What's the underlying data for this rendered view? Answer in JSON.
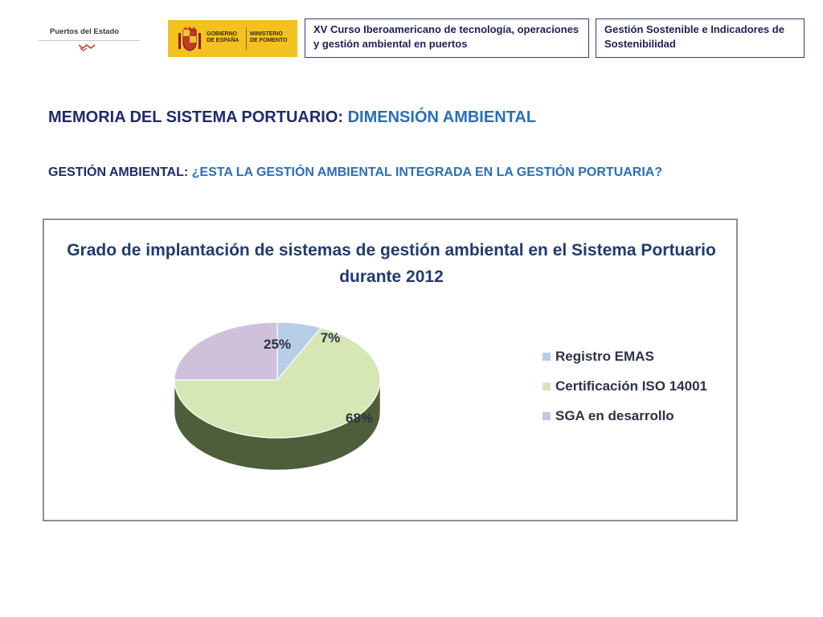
{
  "header": {
    "logo_puertos": "Puertos del Estado",
    "logo_gobierno": [
      "GOBIERNO",
      "DE ESPAÑA"
    ],
    "logo_ministerio": [
      "MINISTERIO",
      "DE FOMENTO"
    ],
    "course_box": "XV Curso Iberoamericano de tecnología, operaciones y gestión ambiental en puertos",
    "topic_box": "Gestión Sostenible e Indicadores de Sostenibilidad"
  },
  "main": {
    "title_prefix": "MEMORIA DEL SISTEMA PORTUARIO: ",
    "title_highlight": "DIMENSIÓN AMBIENTAL",
    "subtitle_prefix": "GESTIÓN AMBIENTAL: ",
    "subtitle_highlight": "¿ESTA LA GESTIÓN AMBIENTAL INTEGRADA EN LA GESTIÓN PORTUARIA?"
  },
  "colors": {
    "navy": "#1f2a6b",
    "accent_blue": "#2a6fb9",
    "slice_emas": "#b8cde6",
    "slice_iso": "#d6e6b4",
    "slice_sga": "#cfc0dc"
  },
  "chart_data": {
    "type": "pie",
    "title_lines": [
      "Grado de implantación de sistemas de gestión ambiental en el Sistema Portuario",
      "durante 2012"
    ],
    "categories": [
      "Registro EMAS",
      "Certificación ISO 14001",
      "SGA en desarrollo"
    ],
    "values": [
      7,
      68,
      25
    ],
    "labels": [
      "7%",
      "68%",
      "25%"
    ],
    "style": "3d",
    "legend_position": "right"
  }
}
